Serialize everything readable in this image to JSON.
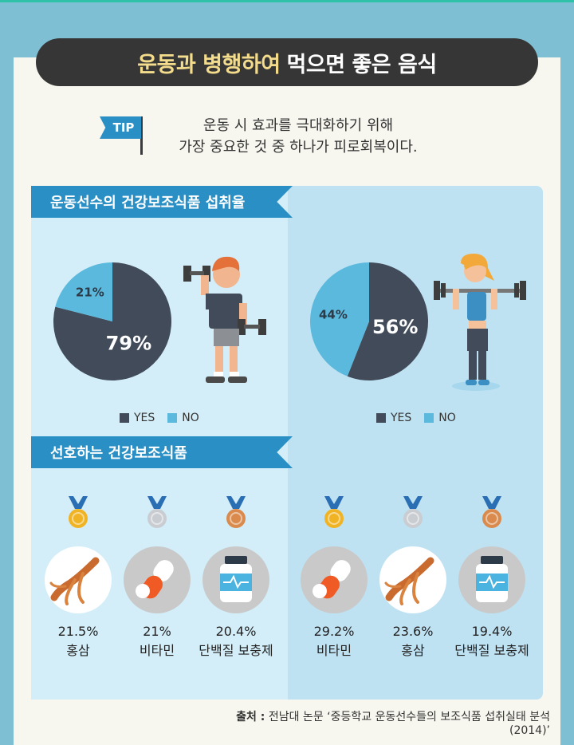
{
  "title": {
    "highlight": "운동과 병행하여",
    "rest": "먹으면 좋은 음식"
  },
  "tip": {
    "badge": "TIP",
    "line1": "운동 시 효과를 극대화하기 위해",
    "line2": "가장 중요한 것 중 하나가 피로회복이다."
  },
  "section1": {
    "title": "운동선수의 건강보조식품 섭취율"
  },
  "section2": {
    "title": "선호하는 건강보조식품"
  },
  "legend": {
    "yes": "YES",
    "no": "NO"
  },
  "colors": {
    "yes": "#414b5a",
    "no": "#5bb9dd",
    "accent": "#2a8fc4",
    "gold": "#f0b323",
    "silver": "#c9ccd1",
    "bronze": "#d98a4c"
  },
  "chart_data": [
    {
      "type": "pie",
      "categories": [
        "YES",
        "NO"
      ],
      "values": [
        79,
        21
      ],
      "labels": [
        "79%",
        "21%"
      ]
    },
    {
      "type": "pie",
      "categories": [
        "YES",
        "NO"
      ],
      "values": [
        56,
        44
      ],
      "labels": [
        "56%",
        "44%"
      ]
    }
  ],
  "preferences": {
    "left": [
      {
        "rank": "gold",
        "icon": "red-ginseng-icon",
        "value": "21.5%",
        "name": "홍삼"
      },
      {
        "rank": "silver",
        "icon": "pill-capsule-icon",
        "value": "21%",
        "name": "비타민"
      },
      {
        "rank": "bronze",
        "icon": "protein-bottle-icon",
        "value": "20.4%",
        "name": "단백질 보충제"
      }
    ],
    "right": [
      {
        "rank": "gold",
        "icon": "pill-capsule-icon",
        "value": "29.2%",
        "name": "비타민"
      },
      {
        "rank": "silver",
        "icon": "red-ginseng-icon",
        "value": "23.6%",
        "name": "홍삼"
      },
      {
        "rank": "bronze",
        "icon": "protein-bottle-icon",
        "value": "19.4%",
        "name": "단백질 보충제"
      }
    ]
  },
  "source": {
    "label": "출처 :",
    "text": "전남대 논문 ‘중등학교 운동선수들의 보조식품 섭취실태 분석(2014)’"
  }
}
